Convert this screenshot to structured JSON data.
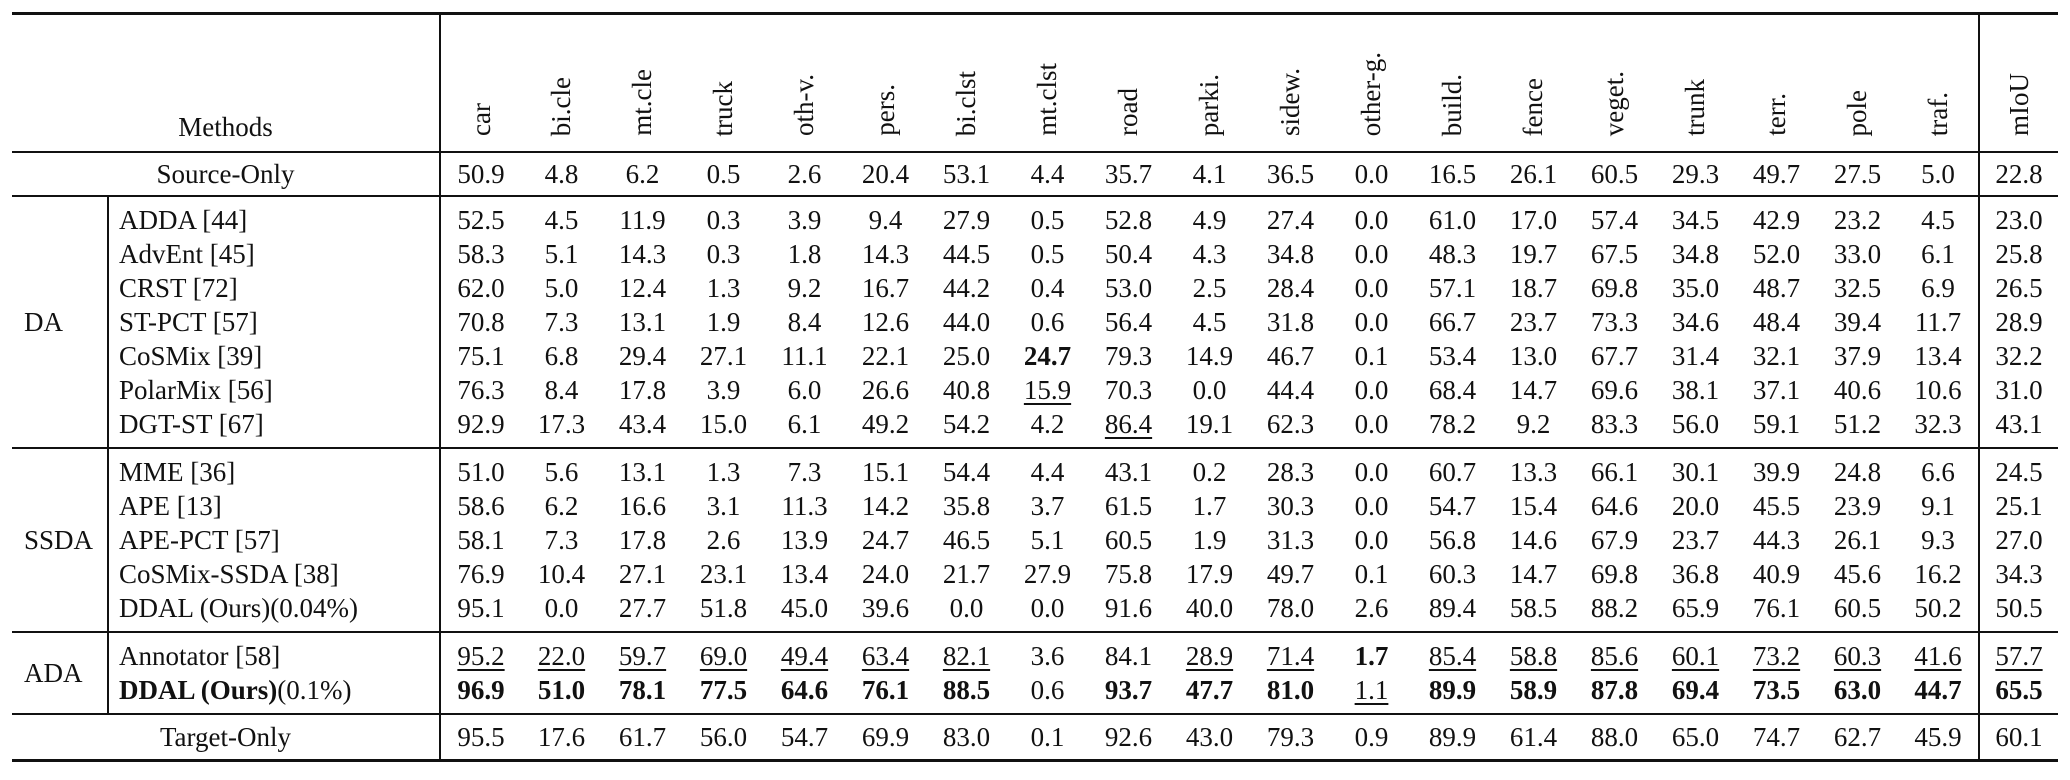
{
  "columns": [
    "Methods",
    "car",
    "bi.cle",
    "mt.cle",
    "truck",
    "oth-v.",
    "pers.",
    "bi.clst",
    "mt.clst",
    "road",
    "parki.",
    "sidew.",
    "other-g.",
    "build.",
    "fence",
    "veget.",
    "trunk",
    "terr.",
    "pole",
    "traf.",
    "mIoU"
  ],
  "source_only": {
    "method": "Source-Only",
    "values": [
      "50.9",
      "4.8",
      "6.2",
      "0.5",
      "2.6",
      "20.4",
      "53.1",
      "4.4",
      "35.7",
      "4.1",
      "36.5",
      "0.0",
      "16.5",
      "26.1",
      "60.5",
      "29.3",
      "49.7",
      "27.5",
      "5.0"
    ],
    "miou": "22.8"
  },
  "groups": [
    {
      "label": "DA",
      "rows": [
        {
          "method": "ADDA [44]",
          "values": [
            "52.5",
            "4.5",
            "11.9",
            "0.3",
            "3.9",
            "9.4",
            "27.9",
            "0.5",
            "52.8",
            "4.9",
            "27.4",
            "0.0",
            "61.0",
            "17.0",
            "57.4",
            "34.5",
            "42.9",
            "23.2",
            "4.5"
          ],
          "miou": "23.0"
        },
        {
          "method": "AdvEnt [45]",
          "values": [
            "58.3",
            "5.1",
            "14.3",
            "0.3",
            "1.8",
            "14.3",
            "44.5",
            "0.5",
            "50.4",
            "4.3",
            "34.8",
            "0.0",
            "48.3",
            "19.7",
            "67.5",
            "34.8",
            "52.0",
            "33.0",
            "6.1"
          ],
          "miou": "25.8"
        },
        {
          "method": "CRST [72]",
          "values": [
            "62.0",
            "5.0",
            "12.4",
            "1.3",
            "9.2",
            "16.7",
            "44.2",
            "0.4",
            "53.0",
            "2.5",
            "28.4",
            "0.0",
            "57.1",
            "18.7",
            "69.8",
            "35.0",
            "48.7",
            "32.5",
            "6.9"
          ],
          "miou": "26.5"
        },
        {
          "method": "ST-PCT [57]",
          "values": [
            "70.8",
            "7.3",
            "13.1",
            "1.9",
            "8.4",
            "12.6",
            "44.0",
            "0.6",
            "56.4",
            "4.5",
            "31.8",
            "0.0",
            "66.7",
            "23.7",
            "73.3",
            "34.6",
            "48.4",
            "39.4",
            "11.7"
          ],
          "miou": "28.9"
        },
        {
          "method": "CoSMix [39]",
          "values": [
            "75.1",
            "6.8",
            "29.4",
            "27.1",
            "11.1",
            "22.1",
            "25.0",
            "24.7",
            "79.3",
            "14.9",
            "46.7",
            "0.1",
            "53.4",
            "13.0",
            "67.7",
            "31.4",
            "32.1",
            "37.9",
            "13.4"
          ],
          "miou": "32.2"
        },
        {
          "method": "PolarMix [56]",
          "values": [
            "76.3",
            "8.4",
            "17.8",
            "3.9",
            "6.0",
            "26.6",
            "40.8",
            "15.9",
            "70.3",
            "0.0",
            "44.4",
            "0.0",
            "68.4",
            "14.7",
            "69.6",
            "38.1",
            "37.1",
            "40.6",
            "10.6"
          ],
          "miou": "31.0"
        },
        {
          "method": "DGT-ST [67]",
          "values": [
            "92.9",
            "17.3",
            "43.4",
            "15.0",
            "6.1",
            "49.2",
            "54.2",
            "4.2",
            "86.4",
            "19.1",
            "62.3",
            "0.0",
            "78.2",
            "9.2",
            "83.3",
            "56.0",
            "59.1",
            "51.2",
            "32.3"
          ],
          "miou": "43.1"
        }
      ]
    },
    {
      "label": "SSDA",
      "rows": [
        {
          "method": "MME [36]",
          "values": [
            "51.0",
            "5.6",
            "13.1",
            "1.3",
            "7.3",
            "15.1",
            "54.4",
            "4.4",
            "43.1",
            "0.2",
            "28.3",
            "0.0",
            "60.7",
            "13.3",
            "66.1",
            "30.1",
            "39.9",
            "24.8",
            "6.6"
          ],
          "miou": "24.5"
        },
        {
          "method": "APE [13]",
          "values": [
            "58.6",
            "6.2",
            "16.6",
            "3.1",
            "11.3",
            "14.2",
            "35.8",
            "3.7",
            "61.5",
            "1.7",
            "30.3",
            "0.0",
            "54.7",
            "15.4",
            "64.6",
            "20.0",
            "45.5",
            "23.9",
            "9.1"
          ],
          "miou": "25.1"
        },
        {
          "method": "APE-PCT [57]",
          "values": [
            "58.1",
            "7.3",
            "17.8",
            "2.6",
            "13.9",
            "24.7",
            "46.5",
            "5.1",
            "60.5",
            "1.9",
            "31.3",
            "0.0",
            "56.8",
            "14.6",
            "67.9",
            "23.7",
            "44.3",
            "26.1",
            "9.3"
          ],
          "miou": "27.0"
        },
        {
          "method": "CoSMix-SSDA [38]",
          "values": [
            "76.9",
            "10.4",
            "27.1",
            "23.1",
            "13.4",
            "24.0",
            "21.7",
            "27.9",
            "75.8",
            "17.9",
            "49.7",
            "0.1",
            "60.3",
            "14.7",
            "69.8",
            "36.8",
            "40.9",
            "45.6",
            "16.2"
          ],
          "miou": "34.3"
        },
        {
          "method": "DDAL (Ours)(0.04%)",
          "values": [
            "95.1",
            "0.0",
            "27.7",
            "51.8",
            "45.0",
            "39.6",
            "0.0",
            "0.0",
            "91.6",
            "40.0",
            "78.0",
            "2.6",
            "89.4",
            "58.5",
            "88.2",
            "65.9",
            "76.1",
            "60.5",
            "50.2"
          ],
          "miou": "50.5"
        }
      ]
    },
    {
      "label": "ADA",
      "rows": [
        {
          "method": "Annotator [58]",
          "values": [
            "95.2",
            "22.0",
            "59.7",
            "69.0",
            "49.4",
            "63.4",
            "82.1",
            "3.6",
            "84.1",
            "28.9",
            "71.4",
            "1.7",
            "85.4",
            "58.8",
            "85.6",
            "60.1",
            "73.2",
            "60.3",
            "41.6"
          ],
          "miou": "57.7"
        },
        {
          "method_bold": "DDAL (Ours)",
          "method_rest": "(0.1%)",
          "values": [
            "96.9",
            "51.0",
            "78.1",
            "77.5",
            "64.6",
            "76.1",
            "88.5",
            "0.6",
            "93.7",
            "47.7",
            "81.0",
            "1.1",
            "89.9",
            "58.9",
            "87.8",
            "69.4",
            "73.5",
            "63.0",
            "44.7"
          ],
          "miou": "65.5"
        }
      ]
    }
  ],
  "target_only": {
    "method": "Target-Only",
    "values": [
      "95.5",
      "17.6",
      "61.7",
      "56.0",
      "54.7",
      "69.9",
      "83.0",
      "0.1",
      "92.6",
      "43.0",
      "79.3",
      "0.9",
      "89.9",
      "61.4",
      "88.0",
      "65.0",
      "74.7",
      "62.7",
      "45.9"
    ],
    "miou": "60.1"
  },
  "emphasis": {
    "bold": [
      [
        "ADA",
        1,
        "all"
      ],
      [
        "DA",
        4,
        "7"
      ],
      [
        "ADA",
        0,
        "11"
      ]
    ],
    "underline": [
      [
        "DA",
        5,
        "7"
      ],
      [
        "DA",
        6,
        "8"
      ],
      [
        "ADA",
        0,
        "all-except-7-8"
      ],
      [
        "ADA",
        1,
        "11"
      ]
    ]
  }
}
